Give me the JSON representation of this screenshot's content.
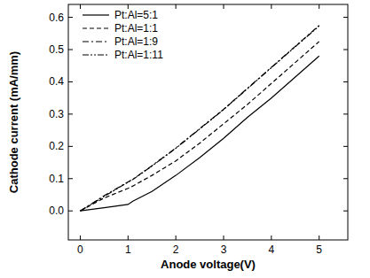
{
  "chart_data": {
    "type": "line",
    "x_label": "Anode voltage(V)",
    "y_label": "Cathode current (mA/mm)",
    "x": [
      0,
      0.5,
      1,
      1.1,
      1.5,
      2,
      2.5,
      3,
      3.5,
      4,
      4.5,
      5
    ],
    "series": [
      {
        "name": "Pt:Al=5:1",
        "color": "#000000",
        "line_style": "solid",
        "values": [
          0,
          0.01,
          0.02,
          0.03,
          0.06,
          0.11,
          0.165,
          0.225,
          0.29,
          0.35,
          0.415,
          0.48
        ]
      },
      {
        "name": "Pt:Al=1:1",
        "color": "#000000",
        "line_style": "dashed",
        "values": [
          0,
          0.04,
          0.07,
          0.077,
          0.11,
          0.155,
          0.21,
          0.27,
          0.33,
          0.395,
          0.46,
          0.525
        ]
      },
      {
        "name": "Pt:Al=1:9",
        "color": "#000000",
        "line_style": "dashdot",
        "values": [
          0,
          0.047,
          0.09,
          0.098,
          0.14,
          0.195,
          0.255,
          0.315,
          0.38,
          0.445,
          0.51,
          0.575
        ]
      },
      {
        "name": "Pt:Al=1:11",
        "color": "#000000",
        "line_style": "dashdotdot",
        "values": [
          0,
          0.045,
          0.089,
          0.097,
          0.139,
          0.194,
          0.254,
          0.314,
          0.379,
          0.444,
          0.509,
          0.573
        ]
      }
    ],
    "xlim": [
      -0.25,
      5.6
    ],
    "xticks": [
      0,
      1,
      2,
      3,
      4,
      5
    ],
    "ylim": [
      -0.09,
      0.64
    ],
    "yticks": [
      {
        "value": 0,
        "label": "0.0"
      },
      0.1,
      0.2,
      0.3,
      0.4,
      0.5,
      0.6
    ],
    "legend": "upper left",
    "grid": false
  }
}
